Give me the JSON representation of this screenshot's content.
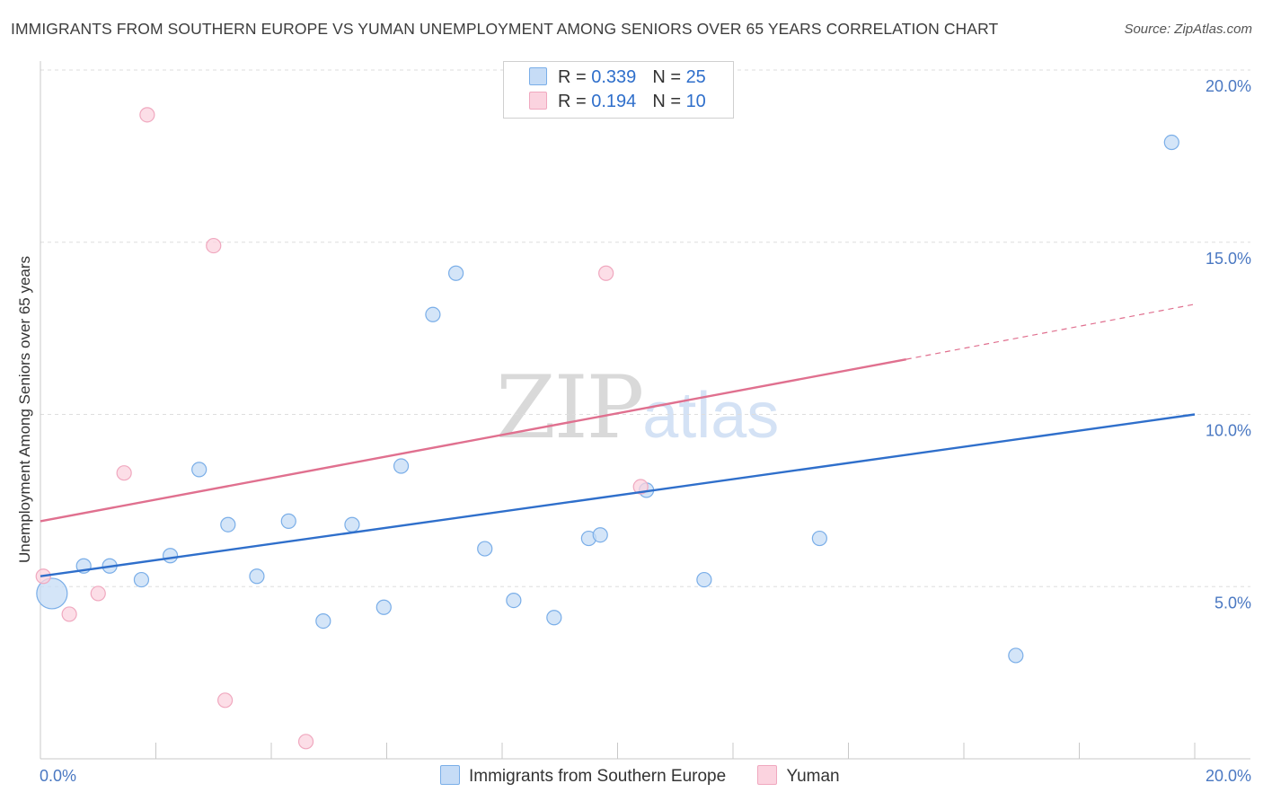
{
  "chart_data": {
    "type": "scatter",
    "title": "IMMIGRANTS FROM SOUTHERN EUROPE VS YUMAN UNEMPLOYMENT AMONG SENIORS OVER 65 YEARS CORRELATION CHART",
    "source": "Source: ZipAtlas.com",
    "ylabel": "Unemployment Among Seniors over 65 years",
    "xlabel": "",
    "xlim": [
      0,
      20
    ],
    "ylim": [
      0,
      20
    ],
    "x_tick_labels": {
      "left": "0.0%",
      "right": "20.0%"
    },
    "y_ticks": [
      {
        "value": 5,
        "label": "5.0%"
      },
      {
        "value": 10,
        "label": "10.0%"
      },
      {
        "value": 15,
        "label": "15.0%"
      },
      {
        "value": 20,
        "label": "20.0%"
      }
    ],
    "legend": {
      "r_label": "R =",
      "n_label": "N =",
      "entries": [
        {
          "name": "Immigrants from Southern Europe",
          "r": "0.339",
          "n": "25"
        },
        {
          "name": "Yuman",
          "r": "0.194",
          "n": "10"
        }
      ]
    },
    "series": [
      {
        "name": "Immigrants from Southern Europe",
        "color": "#7aaee8",
        "fill": "#c6dcf6",
        "trend_color": "#2f6fcb",
        "trend": {
          "x0": 0,
          "y0": 5.3,
          "x1": 20,
          "y1": 10.0
        },
        "points": [
          {
            "x": 0.2,
            "y": 4.8,
            "big": true
          },
          {
            "x": 0.75,
            "y": 5.6
          },
          {
            "x": 1.2,
            "y": 5.6
          },
          {
            "x": 1.75,
            "y": 5.2
          },
          {
            "x": 2.25,
            "y": 5.9
          },
          {
            "x": 2.75,
            "y": 8.4
          },
          {
            "x": 3.25,
            "y": 6.8
          },
          {
            "x": 3.75,
            "y": 5.3
          },
          {
            "x": 4.3,
            "y": 6.9
          },
          {
            "x": 4.9,
            "y": 4.0
          },
          {
            "x": 5.4,
            "y": 6.8
          },
          {
            "x": 5.95,
            "y": 4.4
          },
          {
            "x": 6.25,
            "y": 8.5
          },
          {
            "x": 6.8,
            "y": 12.9
          },
          {
            "x": 7.2,
            "y": 14.1
          },
          {
            "x": 7.7,
            "y": 6.1
          },
          {
            "x": 8.2,
            "y": 4.6
          },
          {
            "x": 8.9,
            "y": 4.1
          },
          {
            "x": 9.5,
            "y": 6.4
          },
          {
            "x": 9.7,
            "y": 6.5
          },
          {
            "x": 10.5,
            "y": 7.8
          },
          {
            "x": 11.5,
            "y": 5.2
          },
          {
            "x": 13.5,
            "y": 6.4
          },
          {
            "x": 16.9,
            "y": 3.0
          },
          {
            "x": 19.6,
            "y": 17.9
          }
        ]
      },
      {
        "name": "Yuman",
        "color": "#f0a8bf",
        "fill": "#fbd3df",
        "trend_color": "#e0708f",
        "trend": {
          "x0": 0,
          "y0": 6.9,
          "x1": 15.0,
          "y1": 11.6,
          "dash_x1": 20,
          "dash_y1": 13.2
        },
        "points": [
          {
            "x": 0.05,
            "y": 5.3
          },
          {
            "x": 0.5,
            "y": 4.2
          },
          {
            "x": 1.0,
            "y": 4.8
          },
          {
            "x": 1.45,
            "y": 8.3
          },
          {
            "x": 1.85,
            "y": 18.7
          },
          {
            "x": 3.0,
            "y": 14.9
          },
          {
            "x": 3.2,
            "y": 1.7
          },
          {
            "x": 4.6,
            "y": 0.5
          },
          {
            "x": 9.8,
            "y": 14.1
          },
          {
            "x": 10.4,
            "y": 7.9
          }
        ]
      }
    ],
    "watermark": {
      "zip": "ZIP",
      "atlas": "atlas"
    }
  }
}
